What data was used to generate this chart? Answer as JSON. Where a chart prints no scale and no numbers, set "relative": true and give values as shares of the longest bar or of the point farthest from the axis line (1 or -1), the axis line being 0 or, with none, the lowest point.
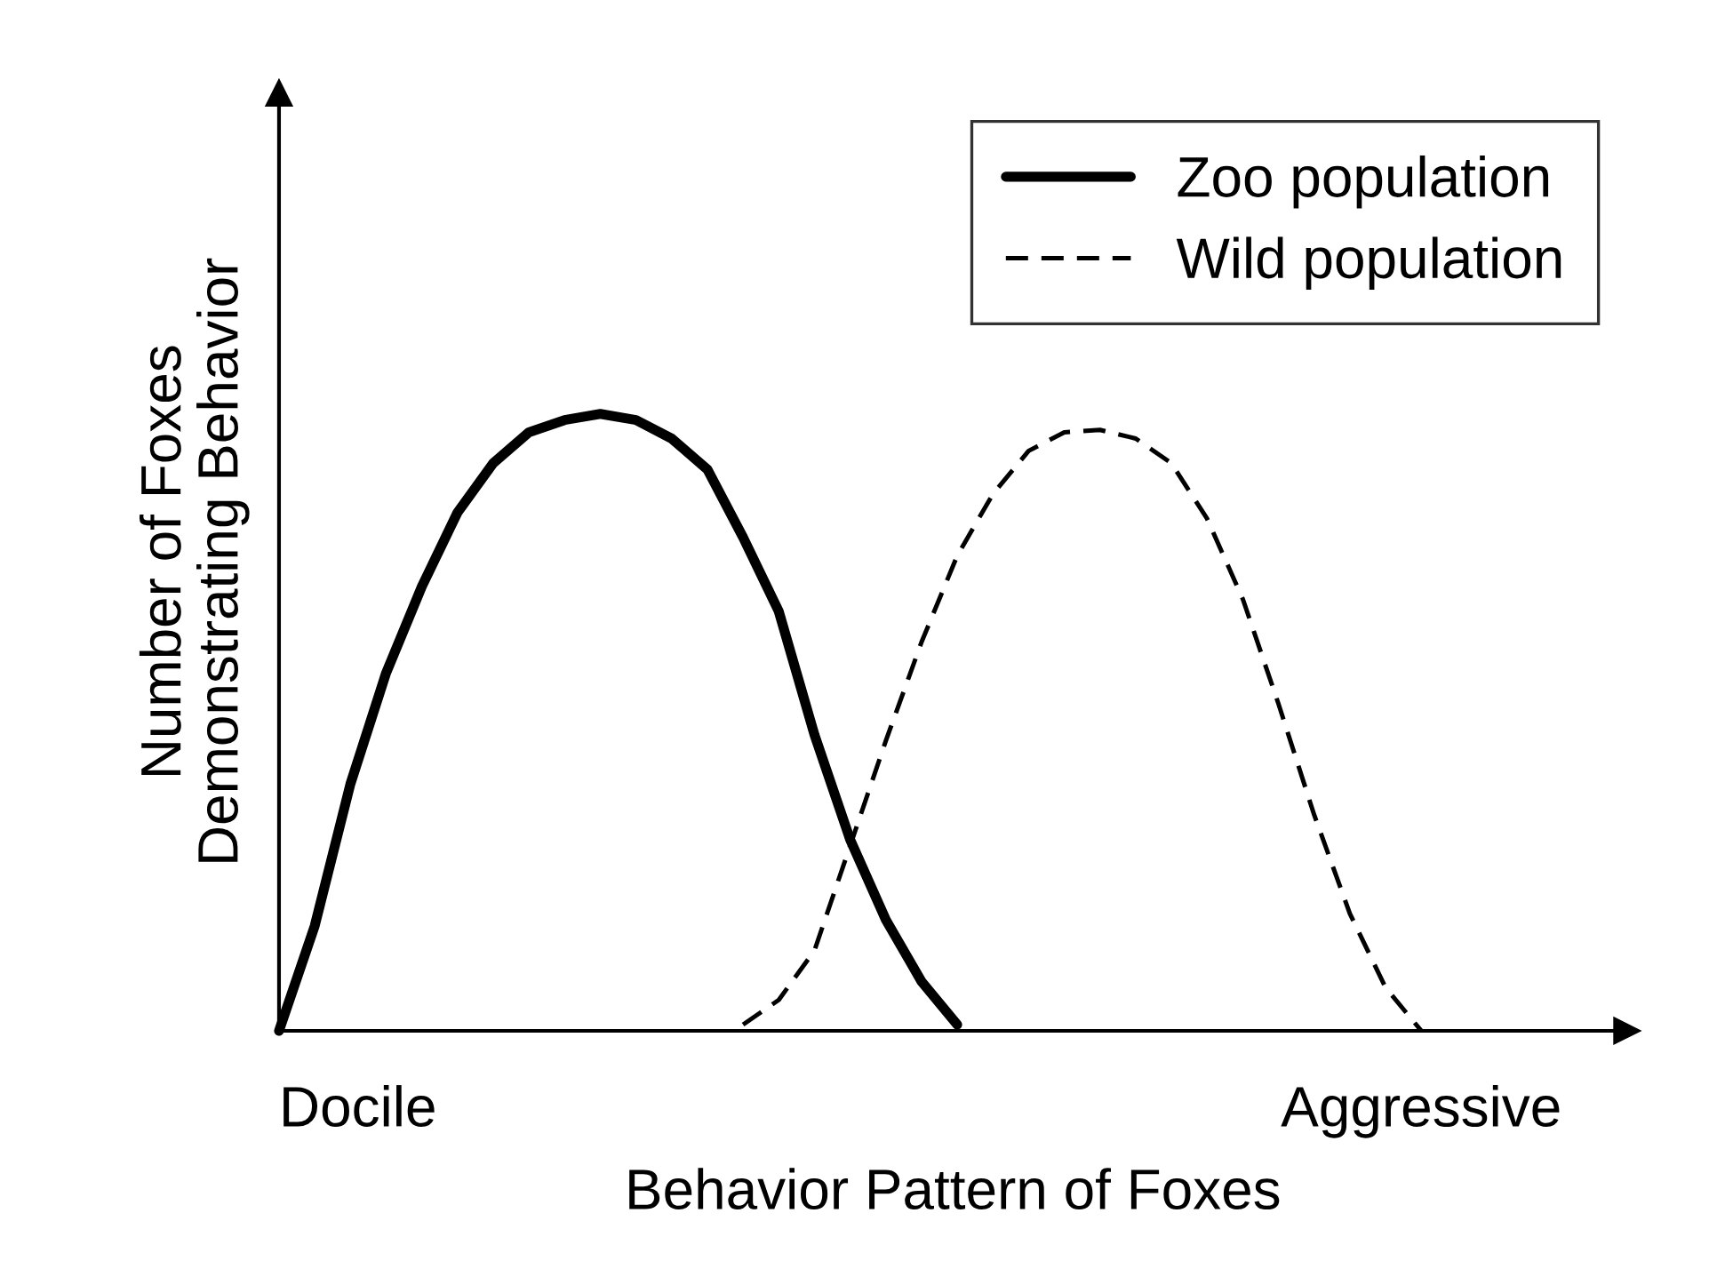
{
  "chart_data": {
    "type": "line",
    "relative": true,
    "xlabel": "Behavior Pattern of Foxes",
    "ylabel": "Number of Foxes\nDemonstrating Behavior",
    "categories": [
      null,
      null,
      null,
      null,
      null,
      null,
      null,
      null,
      null,
      null,
      null,
      null,
      null,
      null,
      null,
      null,
      null,
      null,
      null,
      null,
      null,
      null,
      null,
      null,
      null,
      null,
      null,
      null,
      null,
      null,
      null,
      null,
      null
    ],
    "series": [
      {
        "name": "Zoo population",
        "color": "#000000",
        "line_style": "solid",
        "values": [
          0,
          0.17,
          0.4,
          0.58,
          0.72,
          0.84,
          0.92,
          0.97,
          0.99,
          1.0,
          0.99,
          0.96,
          0.91,
          0.8,
          0.68,
          0.48,
          0.31,
          0.18,
          0.08,
          0.01,
          null,
          null,
          null,
          null,
          null,
          null,
          null,
          null,
          null,
          null,
          null,
          null,
          null
        ]
      },
      {
        "name": "Wild population",
        "color": "#000000",
        "line_style": "dashed",
        "values": [
          null,
          null,
          null,
          null,
          null,
          null,
          null,
          null,
          null,
          null,
          null,
          null,
          null,
          0.01,
          0.05,
          0.13,
          0.3,
          0.47,
          0.63,
          0.77,
          0.87,
          0.94,
          0.97,
          0.974,
          0.96,
          0.92,
          0.83,
          0.7,
          0.53,
          0.35,
          0.19,
          0.07,
          0.0
        ]
      }
    ],
    "annotations": [
      "Docile",
      "Aggressive"
    ],
    "legend": "top right",
    "grid": false,
    "marker": "none"
  }
}
